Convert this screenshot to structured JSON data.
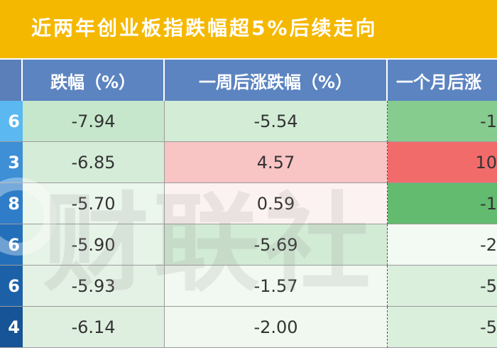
{
  "title": "近两年创业板指跌幅超5%后续走向",
  "columns": [
    "",
    "跌幅（%）",
    "一周后涨跌幅（%）",
    "一个月后涨"
  ],
  "rows": [
    {
      "label": "6",
      "drop": "-7.94",
      "week": "-5.54",
      "month": "-1",
      "bg": [
        "#5bb8f0",
        "#c6e7cb",
        "#d3ecd6",
        "#86cc8f"
      ]
    },
    {
      "label": "3",
      "drop": "-6.85",
      "week": "4.57",
      "month": "10",
      "bg": [
        "#3e8fd6",
        "#d5ecd8",
        "#f8c4c4",
        "#f26b6b"
      ]
    },
    {
      "label": "8",
      "drop": "-5.70",
      "week": "0.59",
      "month": "-1",
      "bg": [
        "#2f7dc8",
        "#ebf6ec",
        "#fdf2f2",
        "#62bb6e"
      ]
    },
    {
      "label": "6",
      "drop": "-5.90",
      "week": "-5.69",
      "month": "-2",
      "bg": [
        "#236fba",
        "#e6f3e7",
        "#d2ebd5",
        "#f3f9f3"
      ]
    },
    {
      "label": "6",
      "drop": "-5.93",
      "week": "-1.57",
      "month": "-5",
      "bg": [
        "#1c61a8",
        "#e4f2e5",
        "#f2f9f2",
        "#dbefdd"
      ]
    },
    {
      "label": "4",
      "drop": "-6.14",
      "week": "-2.00",
      "month": "-5",
      "bg": [
        "#175397",
        "#deefe0",
        "#f0f8f0",
        "#dbefdd"
      ]
    }
  ],
  "watermark": "财联社"
}
